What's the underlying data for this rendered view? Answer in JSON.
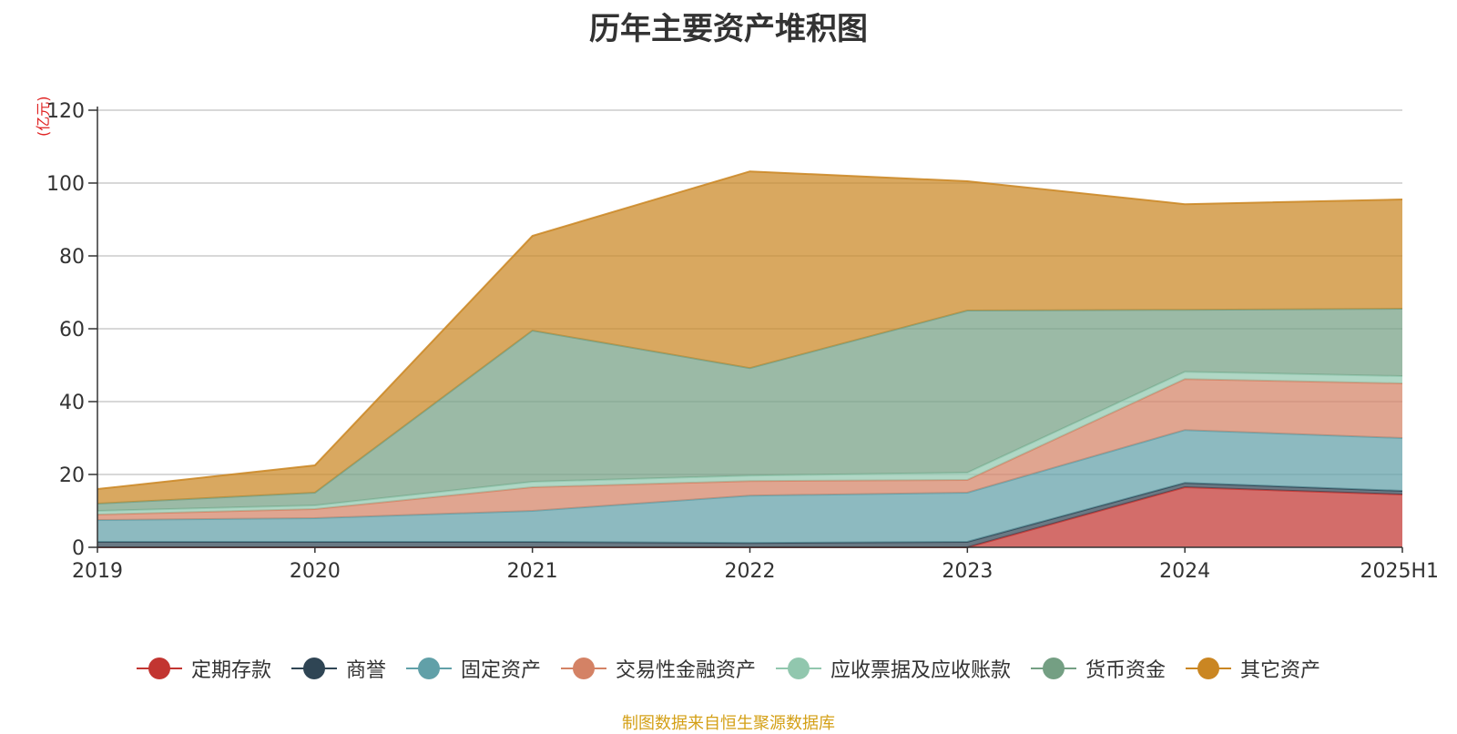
{
  "chart_data": {
    "type": "area",
    "title": "历年主要资产堆积图",
    "unit_label": "(亿元)",
    "x": [
      "2019",
      "2020",
      "2021",
      "2022",
      "2023",
      "2024",
      "2025H1"
    ],
    "ylim": [
      0,
      120
    ],
    "yticks": [
      0,
      20,
      40,
      60,
      80,
      100,
      120
    ],
    "grid": true,
    "legend_position": "bottom",
    "stacked": true,
    "series": [
      {
        "name": "定期存款",
        "color": "#c23531",
        "values": [
          0,
          0,
          0,
          0,
          0,
          16.5,
          14.5
        ]
      },
      {
        "name": "商誉",
        "color": "#2f4554",
        "values": [
          1.5,
          1.5,
          1.5,
          1.2,
          1.5,
          1.2,
          1.0
        ]
      },
      {
        "name": "固定资产",
        "color": "#61a0a8",
        "values": [
          6.0,
          6.5,
          8.5,
          13.0,
          13.5,
          14.5,
          14.5
        ]
      },
      {
        "name": "交易性金融资产",
        "color": "#d48265",
        "values": [
          1.5,
          2.5,
          6.5,
          4.0,
          3.5,
          14.0,
          15.0
        ]
      },
      {
        "name": "应收票据及应收账款",
        "color": "#91c7ae",
        "values": [
          1.0,
          1.0,
          1.5,
          1.5,
          2.0,
          2.0,
          2.0
        ]
      },
      {
        "name": "货币资金",
        "color": "#749f83",
        "values": [
          2.0,
          3.5,
          41.5,
          29.5,
          44.5,
          17.0,
          18.5
        ]
      },
      {
        "name": "其它资产",
        "color": "#ca8622",
        "values": [
          4.0,
          7.5,
          26.0,
          54.0,
          35.5,
          29.0,
          30.0
        ]
      }
    ]
  },
  "source_text": "制图数据来自恒生聚源数据库"
}
